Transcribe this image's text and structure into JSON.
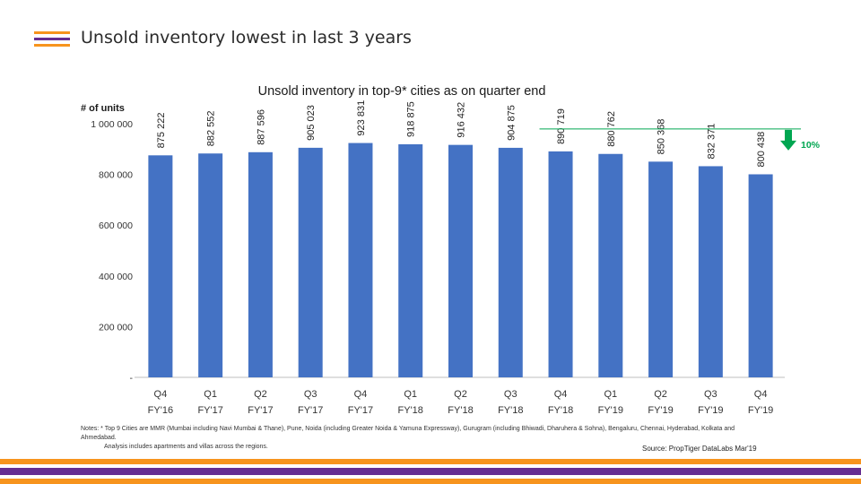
{
  "slide": {
    "title": "Unsold inventory lowest in last 3 years",
    "notes_line1": "Notes: * Top 9 Cities are MMR (Mumbai including Navi Mumbai & Thane), Pune, Noida (including Greater Noida & Yamuna Expressway), Gurugram (including Bhiwadi, Dharuhera & Sohna), Bengaluru, Chennai, Hyderabad, Kolkata and Ahmedabad.",
    "notes_line2": "Analysis includes apartments and villas across the regions.",
    "source": "Source: PropTiger DataLabs Mar'19"
  },
  "colors": {
    "bar": "#4472C4",
    "accent_green": "#00A651",
    "stripe_orange": "#F7941D",
    "stripe_purple": "#662D91",
    "grid": "#d9d9d9"
  },
  "chart_data": {
    "type": "bar",
    "title": "Unsold inventory in top-9* cities as on quarter end",
    "ylabel": "# of units",
    "xlabel": "",
    "ylim": [
      0,
      1000000
    ],
    "yticks": [
      0,
      200000,
      400000,
      600000,
      800000,
      1000000
    ],
    "ytick_labels": [
      "-",
      "200 000",
      "400 000",
      "600 000",
      "800 000",
      "1 000 000"
    ],
    "categories": [
      [
        "Q4",
        "FY'16"
      ],
      [
        "Q1",
        "FY'17"
      ],
      [
        "Q2",
        "FY'17"
      ],
      [
        "Q3",
        "FY'17"
      ],
      [
        "Q4",
        "FY'17"
      ],
      [
        "Q1",
        "FY'18"
      ],
      [
        "Q2",
        "FY'18"
      ],
      [
        "Q3",
        "FY'18"
      ],
      [
        "Q4",
        "FY'18"
      ],
      [
        "Q1",
        "FY'19"
      ],
      [
        "Q2",
        "FY'19"
      ],
      [
        "Q3",
        "FY'19"
      ],
      [
        "Q4",
        "FY'19"
      ]
    ],
    "values": [
      875222,
      882552,
      887596,
      905023,
      923831,
      918875,
      916432,
      904875,
      890719,
      880762,
      850368,
      832371,
      800438
    ],
    "value_labels": [
      "875 222",
      "882 552",
      "887 596",
      "905 023",
      "923 831",
      "918 875",
      "916 432",
      "904 875",
      "890 719",
      "880 762",
      "850 368",
      "832 371",
      "800 438"
    ],
    "annotation": {
      "text": "10%",
      "from_index": 8,
      "to_index": 12
    }
  }
}
